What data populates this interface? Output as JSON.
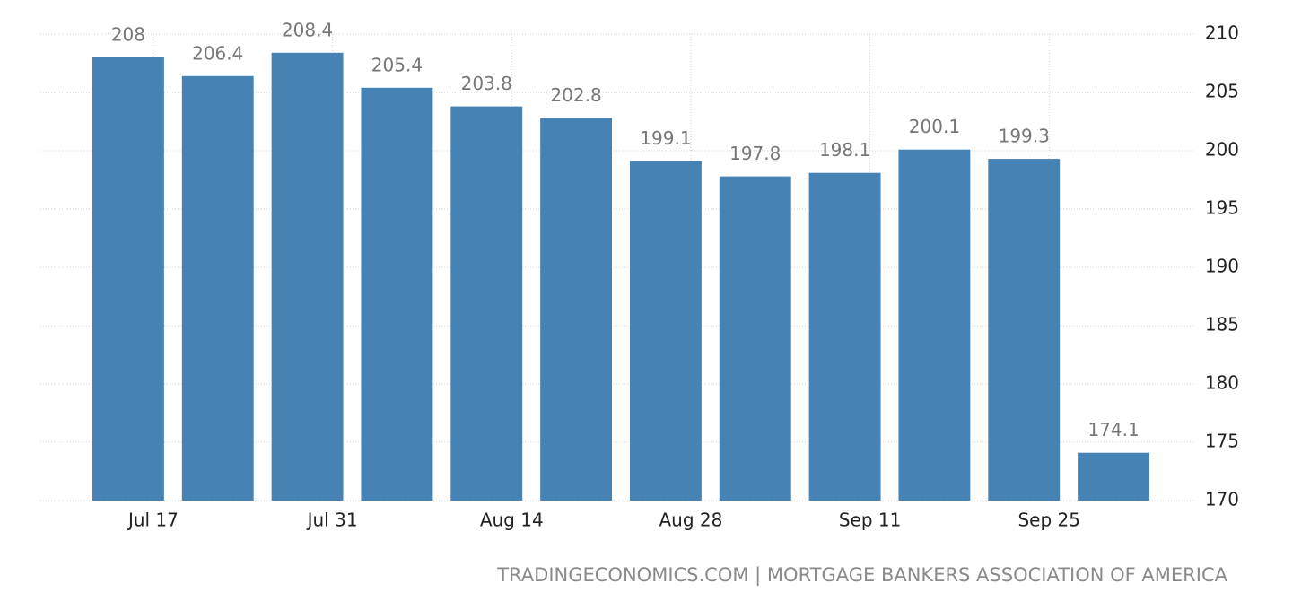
{
  "chart_data": {
    "type": "bar",
    "categories": [
      "Jul 17",
      null,
      "Jul 31",
      null,
      "Aug 14",
      null,
      "Aug 28",
      null,
      "Sep 11",
      null,
      "Sep 25",
      null
    ],
    "values": [
      208,
      206.4,
      208.4,
      205.4,
      203.8,
      202.8,
      199.1,
      197.8,
      198.1,
      200.1,
      199.3,
      174.1
    ],
    "color": "#4682b4",
    "ylim": [
      170,
      210
    ],
    "yticks": [
      170,
      175,
      180,
      185,
      190,
      195,
      200,
      205,
      210
    ],
    "grid": true,
    "source": "TRADINGECONOMICS.COM | MORTGAGE BANKERS ASSOCIATION OF AMERICA"
  }
}
